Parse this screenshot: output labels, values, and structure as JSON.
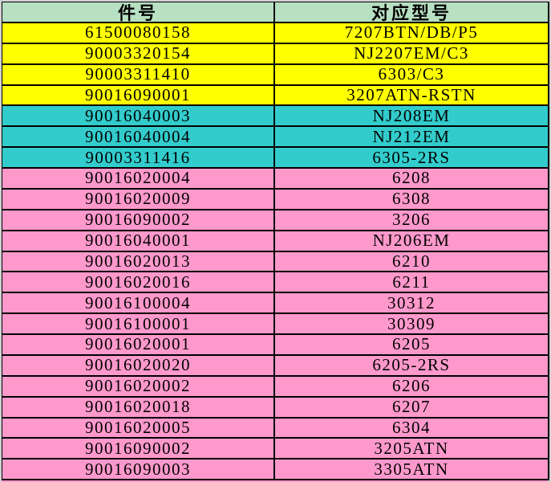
{
  "app": {
    "description": "spreadsheet part-number to model mapping table"
  },
  "colors": {
    "header_bg": "#b8e0c2",
    "yellow": "#ffff00",
    "teal": "#33cccc",
    "pink": "#ff99cc",
    "grid": "#000000",
    "margin_bg": "#d2d2d2",
    "selection_border": "#6e8c3c",
    "text": "#000000"
  },
  "table": {
    "headers": {
      "part": "件号",
      "model": "对应型号"
    },
    "selection": {
      "row_index": 8,
      "column": "part",
      "value": "90016020009"
    },
    "rows": [
      {
        "part": "61500080158",
        "model": "7207BTN/DB/P5",
        "color": "yellow"
      },
      {
        "part": "90003320154",
        "model": "NJ2207EM/C3",
        "color": "yellow"
      },
      {
        "part": "90003311410",
        "model": "6303/C3",
        "color": "yellow"
      },
      {
        "part": "90016090001",
        "model": "3207ATN-RSTN",
        "color": "yellow"
      },
      {
        "part": "90016040003",
        "model": "NJ208EM",
        "color": "teal"
      },
      {
        "part": "90016040004",
        "model": "NJ212EM",
        "color": "teal"
      },
      {
        "part": "90003311416",
        "model": "6305-2RS",
        "color": "teal"
      },
      {
        "part": "90016020004",
        "model": "6208",
        "color": "pink"
      },
      {
        "part": "90016020009",
        "model": "6308",
        "color": "pink"
      },
      {
        "part": "90016090002",
        "model": "3206",
        "color": "pink"
      },
      {
        "part": "90016040001",
        "model": "NJ206EM",
        "color": "pink"
      },
      {
        "part": "90016020013",
        "model": "6210",
        "color": "pink"
      },
      {
        "part": "90016020016",
        "model": "6211",
        "color": "pink"
      },
      {
        "part": "90016100004",
        "model": "30312",
        "color": "pink"
      },
      {
        "part": "90016100001",
        "model": "30309",
        "color": "pink"
      },
      {
        "part": "90016020001",
        "model": "6205",
        "color": "pink"
      },
      {
        "part": "90016020020",
        "model": "6205-2RS",
        "color": "pink"
      },
      {
        "part": "90016020002",
        "model": "6206",
        "color": "pink"
      },
      {
        "part": "90016020018",
        "model": "6207",
        "color": "pink"
      },
      {
        "part": "90016020005",
        "model": "6304",
        "color": "pink"
      },
      {
        "part": "90016090002",
        "model": "3205ATN",
        "color": "pink"
      },
      {
        "part": "90016090003",
        "model": "3305ATN",
        "color": "pink"
      }
    ]
  }
}
